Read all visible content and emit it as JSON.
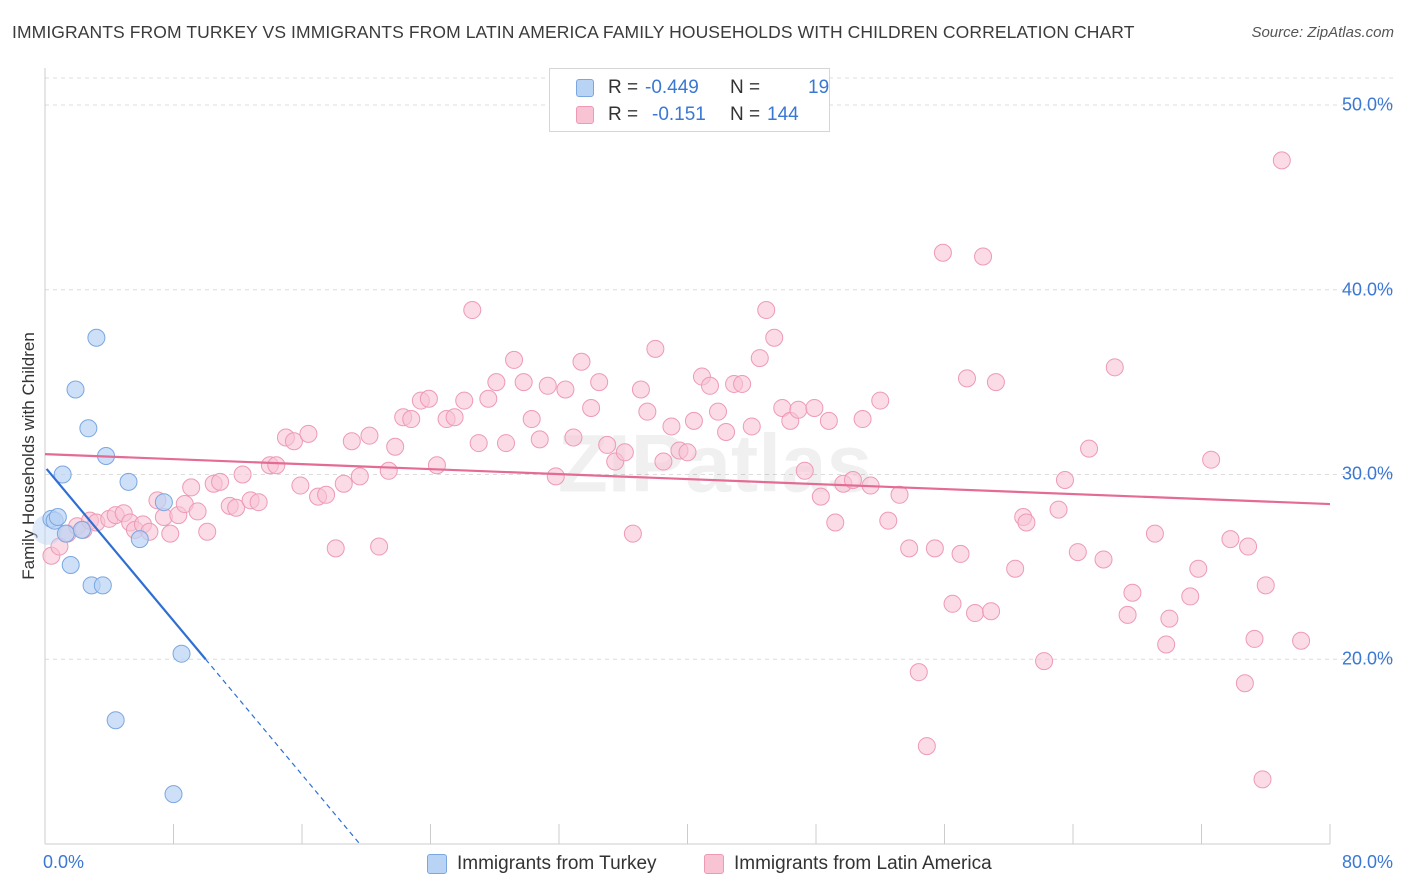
{
  "title": "IMMIGRANTS FROM TURKEY VS IMMIGRANTS FROM LATIN AMERICA FAMILY HOUSEHOLDS WITH CHILDREN CORRELATION CHART",
  "source": "Source: ZipAtlas.com",
  "watermark": "ZIPatlas",
  "colors": {
    "turkey_fill": "#b9d3f5",
    "turkey_stroke": "#7aa7e0",
    "turkey_line": "#2f6fd1",
    "latam_fill": "#f8c3d3",
    "latam_stroke": "#ee9ab5",
    "latam_line": "#e46b94",
    "tick_label": "#3a78d4"
  },
  "legend": {
    "rows": [
      {
        "r_label": "R =",
        "r_value": "-0.449",
        "n_label": "N =",
        "n_value": "19"
      },
      {
        "r_label": "R =",
        "r_value": "-0.151",
        "n_label": "N =",
        "n_value": "144"
      }
    ]
  },
  "bottom_legend": {
    "turkey": "Immigrants from Turkey",
    "latam": "Immigrants from Latin America"
  },
  "chart_data": {
    "type": "scatter",
    "title": "IMMIGRANTS FROM TURKEY VS IMMIGRANTS FROM LATIN AMERICA FAMILY HOUSEHOLDS WITH CHILDREN CORRELATION CHART",
    "xlabel": "",
    "ylabel": "Family Households with Children",
    "xlim": [
      0,
      80
    ],
    "ylim": [
      10,
      52
    ],
    "x_ticks": [
      0,
      80
    ],
    "x_tick_labels": [
      "0.0%",
      "80.0%"
    ],
    "y_ticks": [
      20,
      30,
      40,
      50
    ],
    "y_tick_labels": [
      "20.0%",
      "30.0%",
      "40.0%",
      "50.0%"
    ],
    "grid": true,
    "legend_position": "top-center",
    "series": [
      {
        "name": "Immigrants from Turkey",
        "r": -0.449,
        "n": 19,
        "trend": {
          "x0": 0.1,
          "y0": 30.3,
          "x1": 10.0,
          "y1": 20.0,
          "dash_to_x": 19.6,
          "dash_to_y": 10.0
        },
        "points": [
          [
            0.4,
            27.6
          ],
          [
            0.6,
            27.5
          ],
          [
            0.8,
            27.7
          ],
          [
            1.1,
            30.0
          ],
          [
            1.3,
            26.8
          ],
          [
            1.6,
            25.1
          ],
          [
            1.9,
            34.6
          ],
          [
            2.3,
            27.0
          ],
          [
            2.7,
            32.5
          ],
          [
            2.9,
            24.0
          ],
          [
            3.2,
            37.4
          ],
          [
            3.6,
            24.0
          ],
          [
            3.8,
            31.0
          ],
          [
            4.4,
            16.7
          ],
          [
            5.2,
            29.6
          ],
          [
            5.9,
            26.5
          ],
          [
            7.4,
            28.5
          ],
          [
            8.0,
            12.7
          ],
          [
            8.5,
            20.3
          ]
        ]
      },
      {
        "name": "Immigrants from Latin America",
        "r": -0.151,
        "n": 144,
        "trend": {
          "x0": 0.0,
          "y0": 31.1,
          "x1": 80.0,
          "y1": 28.4
        },
        "points": [
          [
            0.4,
            25.6
          ],
          [
            0.9,
            26.1
          ],
          [
            1.4,
            26.8
          ],
          [
            2.0,
            27.2
          ],
          [
            2.4,
            27.0
          ],
          [
            2.8,
            27.5
          ],
          [
            3.2,
            27.4
          ],
          [
            4.0,
            27.6
          ],
          [
            4.4,
            27.8
          ],
          [
            4.9,
            27.9
          ],
          [
            5.3,
            27.4
          ],
          [
            5.6,
            27.0
          ],
          [
            6.1,
            27.3
          ],
          [
            6.5,
            26.9
          ],
          [
            7.0,
            28.6
          ],
          [
            7.4,
            27.7
          ],
          [
            7.8,
            26.8
          ],
          [
            8.3,
            27.8
          ],
          [
            8.7,
            28.4
          ],
          [
            9.1,
            29.3
          ],
          [
            9.5,
            28.0
          ],
          [
            10.1,
            26.9
          ],
          [
            10.5,
            29.5
          ],
          [
            10.9,
            29.6
          ],
          [
            11.5,
            28.3
          ],
          [
            11.9,
            28.2
          ],
          [
            12.3,
            30.0
          ],
          [
            12.8,
            28.6
          ],
          [
            13.3,
            28.5
          ],
          [
            14.0,
            30.5
          ],
          [
            14.4,
            30.5
          ],
          [
            15.0,
            32.0
          ],
          [
            15.5,
            31.8
          ],
          [
            15.9,
            29.4
          ],
          [
            16.4,
            32.2
          ],
          [
            17.0,
            28.8
          ],
          [
            17.5,
            28.9
          ],
          [
            18.1,
            26.0
          ],
          [
            18.6,
            29.5
          ],
          [
            19.1,
            31.8
          ],
          [
            19.6,
            29.9
          ],
          [
            20.2,
            32.1
          ],
          [
            20.8,
            26.1
          ],
          [
            21.4,
            30.2
          ],
          [
            21.8,
            31.5
          ],
          [
            22.3,
            33.1
          ],
          [
            22.8,
            33.0
          ],
          [
            23.4,
            34.0
          ],
          [
            23.9,
            34.1
          ],
          [
            24.4,
            30.5
          ],
          [
            25.0,
            33.0
          ],
          [
            25.5,
            33.1
          ],
          [
            26.1,
            34.0
          ],
          [
            26.6,
            38.9
          ],
          [
            27.0,
            31.7
          ],
          [
            27.6,
            34.1
          ],
          [
            28.1,
            35.0
          ],
          [
            28.7,
            31.7
          ],
          [
            29.2,
            36.2
          ],
          [
            29.8,
            35.0
          ],
          [
            30.3,
            33.0
          ],
          [
            30.8,
            31.9
          ],
          [
            31.3,
            34.8
          ],
          [
            31.8,
            29.9
          ],
          [
            32.4,
            34.6
          ],
          [
            32.9,
            32.0
          ],
          [
            33.4,
            36.1
          ],
          [
            34.0,
            33.6
          ],
          [
            34.5,
            35.0
          ],
          [
            35.0,
            31.6
          ],
          [
            35.5,
            30.7
          ],
          [
            36.1,
            31.2
          ],
          [
            36.6,
            26.8
          ],
          [
            37.1,
            34.6
          ],
          [
            37.5,
            33.4
          ],
          [
            38.0,
            36.8
          ],
          [
            38.5,
            30.7
          ],
          [
            39.0,
            32.6
          ],
          [
            39.5,
            31.3
          ],
          [
            40.0,
            31.2
          ],
          [
            40.4,
            32.9
          ],
          [
            40.9,
            35.3
          ],
          [
            41.4,
            34.8
          ],
          [
            41.9,
            33.4
          ],
          [
            42.4,
            32.3
          ],
          [
            42.9,
            34.9
          ],
          [
            43.4,
            34.9
          ],
          [
            44.0,
            32.6
          ],
          [
            44.5,
            36.3
          ],
          [
            44.9,
            38.9
          ],
          [
            45.4,
            37.4
          ],
          [
            45.9,
            33.6
          ],
          [
            46.4,
            32.9
          ],
          [
            46.9,
            33.5
          ],
          [
            47.3,
            30.2
          ],
          [
            47.9,
            33.6
          ],
          [
            48.3,
            28.8
          ],
          [
            48.8,
            32.9
          ],
          [
            49.2,
            27.4
          ],
          [
            49.7,
            29.5
          ],
          [
            50.3,
            29.7
          ],
          [
            50.9,
            33.0
          ],
          [
            51.4,
            29.4
          ],
          [
            52.0,
            34.0
          ],
          [
            52.5,
            27.5
          ],
          [
            53.2,
            28.9
          ],
          [
            53.8,
            26.0
          ],
          [
            54.4,
            19.3
          ],
          [
            54.9,
            15.3
          ],
          [
            55.4,
            26.0
          ],
          [
            55.9,
            42.0
          ],
          [
            56.5,
            23.0
          ],
          [
            57.0,
            25.7
          ],
          [
            57.4,
            35.2
          ],
          [
            57.9,
            22.5
          ],
          [
            58.4,
            41.8
          ],
          [
            58.9,
            22.6
          ],
          [
            59.2,
            35.0
          ],
          [
            60.4,
            24.9
          ],
          [
            60.9,
            27.7
          ],
          [
            61.1,
            27.4
          ],
          [
            62.2,
            19.9
          ],
          [
            63.1,
            28.1
          ],
          [
            63.5,
            29.7
          ],
          [
            64.3,
            25.8
          ],
          [
            65.0,
            31.4
          ],
          [
            65.9,
            25.4
          ],
          [
            66.6,
            35.8
          ],
          [
            67.4,
            22.4
          ],
          [
            67.7,
            23.6
          ],
          [
            69.1,
            26.8
          ],
          [
            69.8,
            20.8
          ],
          [
            70.0,
            22.2
          ],
          [
            71.3,
            23.4
          ],
          [
            71.8,
            24.9
          ],
          [
            72.6,
            30.8
          ],
          [
            73.8,
            26.5
          ],
          [
            74.7,
            18.7
          ],
          [
            74.9,
            26.1
          ],
          [
            75.3,
            21.1
          ],
          [
            76.0,
            24.0
          ],
          [
            75.8,
            13.5
          ],
          [
            77.0,
            47.0
          ],
          [
            78.2,
            21.0
          ]
        ]
      }
    ]
  }
}
